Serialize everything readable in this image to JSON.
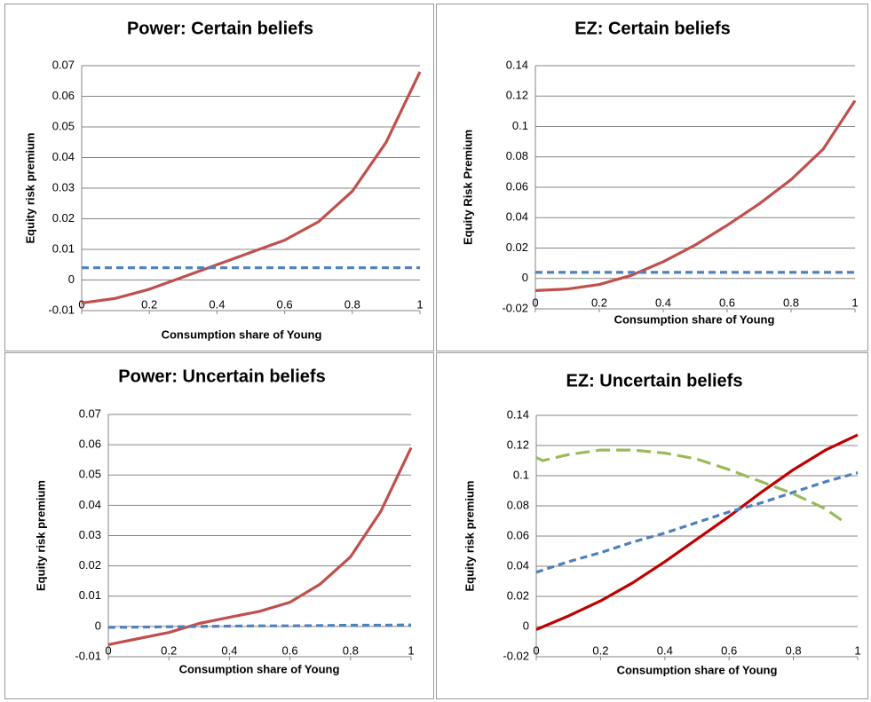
{
  "chart_data": [
    {
      "type": "line",
      "title": "Power: Certain beliefs",
      "x_label": "Consumption share of Young",
      "y_label": "Equity risk premium",
      "x": [
        0,
        0.1,
        0.2,
        0.3,
        0.4,
        0.5,
        0.6,
        0.7,
        0.8,
        0.9,
        1
      ],
      "series": [
        {
          "color": "#c0504d",
          "line_style": "solid",
          "values": [
            -0.0075,
            -0.006,
            -0.003,
            0.001,
            0.005,
            0.009,
            0.013,
            0.019,
            0.029,
            0.045,
            0.068
          ]
        },
        {
          "color": "#4f81bd",
          "line_style": "dashed",
          "values": [
            0.004,
            0.004,
            0.004,
            0.004,
            0.004,
            0.004,
            0.004,
            0.004,
            0.004,
            0.004,
            0.004
          ]
        }
      ],
      "xlim": [
        0,
        1
      ],
      "xticks": [
        0,
        0.2,
        0.4,
        0.6,
        0.8,
        1
      ],
      "ylim": [
        -0.01,
        0.07
      ],
      "yticks": [
        -0.01,
        0,
        0.01,
        0.02,
        0.03,
        0.04,
        0.05,
        0.06,
        0.07
      ],
      "grid": true
    },
    {
      "type": "line",
      "title": "EZ: Certain beliefs",
      "x_label": "Consumption share of Young",
      "y_label": "Equity Risk  Premium",
      "x": [
        0,
        0.1,
        0.2,
        0.3,
        0.4,
        0.5,
        0.6,
        0.7,
        0.8,
        0.9,
        1
      ],
      "series": [
        {
          "color": "#c0504d",
          "line_style": "solid",
          "values": [
            -0.008,
            -0.007,
            -0.004,
            0.002,
            0.011,
            0.022,
            0.035,
            0.049,
            0.065,
            0.085,
            0.117
          ]
        },
        {
          "color": "#4f81bd",
          "line_style": "dashed",
          "values": [
            0.004,
            0.004,
            0.004,
            0.004,
            0.004,
            0.004,
            0.004,
            0.004,
            0.004,
            0.004,
            0.004
          ]
        }
      ],
      "xlim": [
        0,
        1
      ],
      "xticks": [
        0,
        0.2,
        0.4,
        0.6,
        0.8,
        1
      ],
      "ylim": [
        -0.02,
        0.14
      ],
      "yticks": [
        -0.02,
        0,
        0.02,
        0.04,
        0.06,
        0.08,
        0.1,
        0.12,
        0.14
      ],
      "grid": true
    },
    {
      "type": "line",
      "title": "Power: Uncertain beliefs",
      "x_label": "Consumption share of Young",
      "y_label": "Equity risk premium",
      "x": [
        0,
        0.1,
        0.2,
        0.3,
        0.4,
        0.5,
        0.6,
        0.7,
        0.8,
        0.9,
        1
      ],
      "series": [
        {
          "color": "#c0504d",
          "line_style": "solid",
          "values": [
            -0.006,
            -0.004,
            -0.002,
            0.001,
            0.003,
            0.005,
            0.008,
            0.014,
            0.023,
            0.038,
            0.059
          ]
        },
        {
          "color": "#4f81bd",
          "line_style": "dashed",
          "values": [
            -0.0003,
            -0.0002,
            -0.0001,
            0,
            0.0001,
            0.0002,
            0.0002,
            0.0003,
            0.0004,
            0.0004,
            0.0005
          ]
        }
      ],
      "xlim": [
        0,
        1
      ],
      "xticks": [
        0,
        0.2,
        0.4,
        0.6,
        0.8,
        1
      ],
      "ylim": [
        -0.01,
        0.07
      ],
      "yticks": [
        -0.01,
        0,
        0.01,
        0.02,
        0.03,
        0.04,
        0.05,
        0.06,
        0.07
      ],
      "grid": true
    },
    {
      "type": "line",
      "title": "EZ: Uncertain beliefs",
      "x_label": "Consumption share of Young",
      "y_label": "Equity risk premium",
      "x": [
        0,
        0.1,
        0.2,
        0.3,
        0.4,
        0.5,
        0.6,
        0.7,
        0.8,
        0.9,
        1
      ],
      "series": [
        {
          "color": "#c00000",
          "line_style": "solid",
          "values": [
            -0.002,
            0.007,
            0.017,
            0.029,
            0.043,
            0.058,
            0.073,
            0.089,
            0.104,
            0.117,
            0.127
          ]
        },
        {
          "color": "#4f81bd",
          "line_style": "dashed",
          "values": [
            0.036,
            0.043,
            0.049,
            0.056,
            0.062,
            0.069,
            0.076,
            0.082,
            0.089,
            0.096,
            0.102
          ]
        },
        {
          "color": "#9bbb59",
          "line_style": "long-dashed",
          "x": [
            0,
            0.02,
            0.1,
            0.2,
            0.3,
            0.4,
            0.5,
            0.6,
            0.7,
            0.8,
            0.9,
            0.96
          ],
          "values": [
            0.112,
            0.11,
            0.114,
            0.117,
            0.117,
            0.115,
            0.111,
            0.104,
            0.096,
            0.088,
            0.078,
            0.069
          ]
        }
      ],
      "xlim": [
        0,
        1
      ],
      "xticks": [
        0,
        0.2,
        0.4,
        0.6,
        0.8,
        1
      ],
      "ylim": [
        -0.02,
        0.14
      ],
      "yticks": [
        -0.02,
        0,
        0.02,
        0.04,
        0.06,
        0.08,
        0.1,
        0.12,
        0.14
      ],
      "grid": true
    }
  ]
}
